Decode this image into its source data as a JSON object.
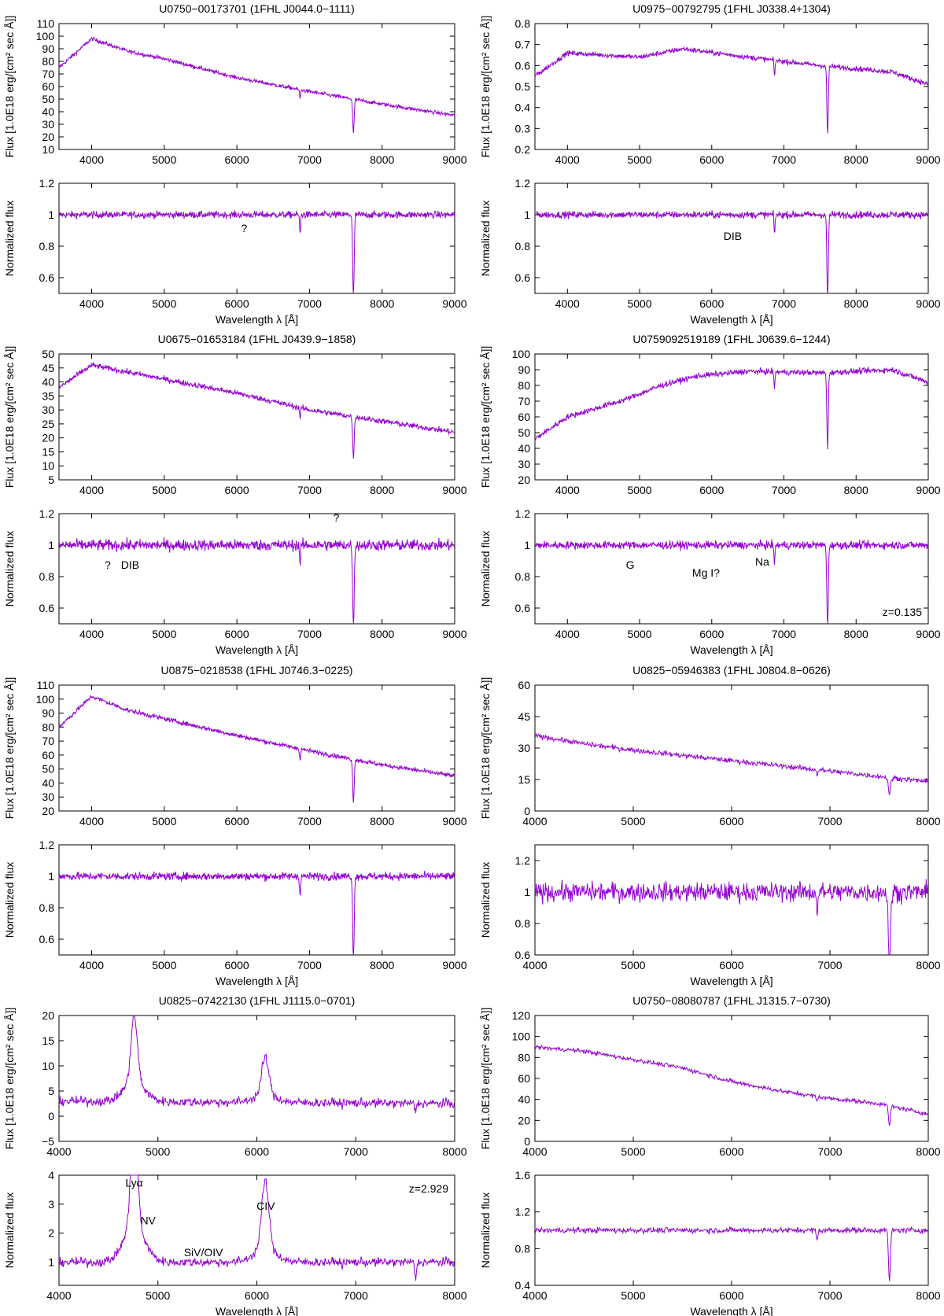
{
  "figure": {
    "spectrum_color": "#9400d3"
  },
  "chart_data": [
    {
      "type": "line",
      "title": "U0750−00173701 (1FHL J0044.0−1111)",
      "flux": {
        "ylabel": "Flux [1.0E18 erg/[cm² sec Å]]",
        "ylim": [
          10,
          110
        ],
        "yticks": [
          10,
          20,
          30,
          40,
          50,
          60,
          70,
          80,
          90,
          100,
          110
        ],
        "ytick_labels": [
          "10",
          "20",
          "30",
          "40",
          "50",
          "60",
          "70",
          "80",
          "90",
          "100",
          "110"
        ],
        "shape": [
          [
            3550,
            75
          ],
          [
            4000,
            98
          ],
          [
            4500,
            88
          ],
          [
            5000,
            82
          ],
          [
            6000,
            67
          ],
          [
            7000,
            56
          ],
          [
            8000,
            46
          ],
          [
            9000,
            37
          ]
        ],
        "noise": 1.5
      },
      "norm": {
        "ylabel": "Normalized flux",
        "ylim": [
          0.5,
          1.2
        ],
        "yticks": [
          0.6,
          0.8,
          1,
          1.2
        ],
        "ytick_labels": [
          "0.6",
          "0.8",
          "1",
          "1.2"
        ],
        "noise": 0.022
      },
      "xlim": [
        3550,
        9000
      ],
      "xticks": [
        4000,
        5000,
        6000,
        7000,
        8000,
        9000
      ],
      "xtick_labels": [
        "4000",
        "5000",
        "6000",
        "7000",
        "8000",
        "9000"
      ],
      "xlabel": "Wavelength λ [Å]",
      "annotations": [
        {
          "text": "?",
          "x": 6100,
          "y": 0.89
        }
      ],
      "z_label": ""
    },
    {
      "type": "line",
      "title": "U0975−00792795 (1FHL J0338.4+1304)",
      "flux": {
        "ylabel": "Flux [1.0E18 erg/[cm² sec Å]]",
        "ylim": [
          0.2,
          0.8
        ],
        "yticks": [
          0.2,
          0.3,
          0.4,
          0.5,
          0.6,
          0.7,
          0.8
        ],
        "ytick_labels": [
          "0.2",
          "0.3",
          "0.4",
          "0.5",
          "0.6",
          "0.7",
          "0.8"
        ],
        "shape": [
          [
            3550,
            0.55
          ],
          [
            4000,
            0.66
          ],
          [
            5000,
            0.64
          ],
          [
            5600,
            0.68
          ],
          [
            6500,
            0.64
          ],
          [
            7500,
            0.6
          ],
          [
            8500,
            0.57
          ],
          [
            9000,
            0.51
          ]
        ],
        "noise": 0.012
      },
      "norm": {
        "ylabel": "Normalized flux",
        "ylim": [
          0.5,
          1.2
        ],
        "yticks": [
          0.6,
          0.8,
          1,
          1.2
        ],
        "ytick_labels": [
          "0.6",
          "0.8",
          "1",
          "1.2"
        ],
        "noise": 0.022
      },
      "xlim": [
        3550,
        9000
      ],
      "xticks": [
        4000,
        5000,
        6000,
        7000,
        8000,
        9000
      ],
      "xtick_labels": [
        "4000",
        "5000",
        "6000",
        "7000",
        "8000",
        "9000"
      ],
      "xlabel": "Wavelength λ [Å]",
      "annotations": [
        {
          "text": "DIB",
          "x": 6290,
          "y": 0.84
        }
      ],
      "z_label": ""
    },
    {
      "type": "line",
      "title": "U0675−01653184 (1FHL J0439.9−1858)",
      "flux": {
        "ylabel": "Flux [1.0E18 erg/[cm² sec Å]]",
        "ylim": [
          5,
          50
        ],
        "yticks": [
          5,
          10,
          15,
          20,
          25,
          30,
          35,
          40,
          45,
          50
        ],
        "ytick_labels": [
          "5",
          "10",
          "15",
          "20",
          "25",
          "30",
          "35",
          "40",
          "45",
          "50"
        ],
        "shape": [
          [
            3550,
            38
          ],
          [
            4000,
            46
          ],
          [
            5000,
            41
          ],
          [
            6000,
            36
          ],
          [
            7000,
            30
          ],
          [
            8000,
            26
          ],
          [
            9000,
            22
          ]
        ],
        "noise": 1.0
      },
      "norm": {
        "ylabel": "Normalized flux",
        "ylim": [
          0.5,
          1.2
        ],
        "yticks": [
          0.6,
          0.8,
          1,
          1.2
        ],
        "ytick_labels": [
          "0.6",
          "0.8",
          "1",
          "1.2"
        ],
        "noise": 0.035
      },
      "xlim": [
        3550,
        9000
      ],
      "xticks": [
        4000,
        5000,
        6000,
        7000,
        8000,
        9000
      ],
      "xtick_labels": [
        "4000",
        "5000",
        "6000",
        "7000",
        "8000",
        "9000"
      ],
      "xlabel": "Wavelength λ [Å]",
      "annotations": [
        {
          "text": "?",
          "x": 4220,
          "y": 0.85
        },
        {
          "text": "DIB",
          "x": 4530,
          "y": 0.85
        },
        {
          "text": "?",
          "x": 7370,
          "y": 1.15
        }
      ],
      "z_label": ""
    },
    {
      "type": "line",
      "title": "U0759092519189 (1FHL J0639.6−1244)",
      "flux": {
        "ylabel": "Flux [1.0E18 erg/[cm² sec Å]]",
        "ylim": [
          20,
          100
        ],
        "yticks": [
          20,
          30,
          40,
          50,
          60,
          70,
          80,
          90,
          100
        ],
        "ytick_labels": [
          "20",
          "30",
          "40",
          "50",
          "60",
          "70",
          "80",
          "90",
          "100"
        ],
        "shape": [
          [
            3550,
            46
          ],
          [
            4000,
            60
          ],
          [
            4800,
            71
          ],
          [
            5300,
            80
          ],
          [
            5800,
            86
          ],
          [
            6500,
            89
          ],
          [
            7500,
            88
          ],
          [
            8500,
            90
          ],
          [
            9000,
            82
          ]
        ],
        "noise": 1.8
      },
      "norm": {
        "ylabel": "Normalized flux",
        "ylim": [
          0.5,
          1.2
        ],
        "yticks": [
          0.6,
          0.8,
          1,
          1.2
        ],
        "ytick_labels": [
          "0.6",
          "0.8",
          "1",
          "1.2"
        ],
        "noise": 0.025
      },
      "xlim": [
        3550,
        9000
      ],
      "xticks": [
        4000,
        5000,
        6000,
        7000,
        8000,
        9000
      ],
      "xtick_labels": [
        "4000",
        "5000",
        "6000",
        "7000",
        "8000",
        "9000"
      ],
      "xlabel": "Wavelength λ [Å]",
      "annotations": [
        {
          "text": "G",
          "x": 4870,
          "y": 0.85
        },
        {
          "text": "Mg I?",
          "x": 5920,
          "y": 0.8
        },
        {
          "text": "Na",
          "x": 6700,
          "y": 0.87
        }
      ],
      "z_label": "z=0.135"
    },
    {
      "type": "line",
      "title": "U0875−0218538 (1FHL J0746.3−0225)",
      "flux": {
        "ylabel": "Flux [1.0E18 erg/[cm² sec Å]]",
        "ylim": [
          20,
          110
        ],
        "yticks": [
          20,
          30,
          40,
          50,
          60,
          70,
          80,
          90,
          100,
          110
        ],
        "ytick_labels": [
          "20",
          "30",
          "40",
          "50",
          "60",
          "70",
          "80",
          "90",
          "100",
          "110"
        ],
        "shape": [
          [
            3550,
            80
          ],
          [
            4000,
            102
          ],
          [
            4500,
            92
          ],
          [
            5000,
            86
          ],
          [
            6000,
            74
          ],
          [
            7000,
            63
          ],
          [
            8000,
            53
          ],
          [
            9000,
            45
          ]
        ],
        "noise": 1.6
      },
      "norm": {
        "ylabel": "Normalized flux",
        "ylim": [
          0.5,
          1.2
        ],
        "yticks": [
          0.6,
          0.8,
          1,
          1.2
        ],
        "ytick_labels": [
          "0.6",
          "0.8",
          "1",
          "1.2"
        ],
        "noise": 0.025
      },
      "xlim": [
        3550,
        9000
      ],
      "xticks": [
        4000,
        5000,
        6000,
        7000,
        8000,
        9000
      ],
      "xtick_labels": [
        "4000",
        "5000",
        "6000",
        "7000",
        "8000",
        "9000"
      ],
      "xlabel": "Wavelength λ [Å]",
      "annotations": [],
      "z_label": ""
    },
    {
      "type": "line",
      "title": "U0825−05946383 (1FHL J0804.8−0626)",
      "flux": {
        "ylabel": "Flux [1.0E18 erg/[cm² sec Å]]",
        "ylim": [
          0,
          60
        ],
        "yticks": [
          0,
          15,
          30,
          45,
          60
        ],
        "ytick_labels": [
          "0",
          "15",
          "30",
          "45",
          "60"
        ],
        "shape": [
          [
            4000,
            36
          ],
          [
            4500,
            32
          ],
          [
            5000,
            29
          ],
          [
            6000,
            24
          ],
          [
            7000,
            19
          ],
          [
            8000,
            14
          ]
        ],
        "noise": 1.2
      },
      "norm": {
        "ylabel": "Normalized flux",
        "ylim": [
          0.6,
          1.3
        ],
        "yticks": [
          0.6,
          0.8,
          1,
          1.2
        ],
        "ytick_labels": [
          "0.6",
          "0.8",
          "1",
          "1.2"
        ],
        "noise": 0.06
      },
      "xlim": [
        4000,
        8000
      ],
      "xticks": [
        4000,
        5000,
        6000,
        7000,
        8000
      ],
      "xtick_labels": [
        "4000",
        "5000",
        "6000",
        "7000",
        "8000"
      ],
      "xlabel": "Wavelength λ [Å]",
      "annotations": [],
      "z_label": ""
    },
    {
      "type": "line",
      "title": "U0825−07422130 (1FHL J1115.0−0701)",
      "flux": {
        "ylabel": "Flux [1.0E18 erg/[cm² sec Å]]",
        "ylim": [
          -5,
          20
        ],
        "yticks": [
          -5,
          0,
          5,
          10,
          15,
          20
        ],
        "ytick_labels": [
          "−5",
          "0",
          "5",
          "10",
          "15",
          "20"
        ],
        "shape": [
          [
            4000,
            3
          ],
          [
            8000,
            2.5
          ]
        ],
        "noise": 0.9
      },
      "norm": {
        "ylabel": "Normalized flux",
        "ylim": [
          0.2,
          4
        ],
        "yticks": [
          1,
          2,
          3,
          4
        ],
        "ytick_labels": [
          "1",
          "2",
          "3",
          "4"
        ],
        "noise": 0.15
      },
      "xlim": [
        4000,
        8000
      ],
      "xticks": [
        4000,
        5000,
        6000,
        7000,
        8000
      ],
      "xtick_labels": [
        "4000",
        "5000",
        "6000",
        "7000",
        "8000"
      ],
      "xlabel": "Wavelength λ [Å]",
      "annotations": [
        {
          "text": "Lyα",
          "x": 4760,
          "y": 3.6
        },
        {
          "text": "NV",
          "x": 4900,
          "y": 2.3
        },
        {
          "text": "SiV/OIV",
          "x": 5460,
          "y": 1.2
        },
        {
          "text": "CIV",
          "x": 6090,
          "y": 2.8
        }
      ],
      "z_label": "z=2.929"
    },
    {
      "type": "line",
      "title": "U0750−08080787 (1FHL J1315.7−0730)",
      "flux": {
        "ylabel": "Flux [1.0E18 erg/[cm² sec Å]]",
        "ylim": [
          0,
          120
        ],
        "yticks": [
          0,
          20,
          40,
          60,
          80,
          100,
          120
        ],
        "ytick_labels": [
          "0",
          "20",
          "40",
          "60",
          "80",
          "100",
          "120"
        ],
        "shape": [
          [
            4000,
            90
          ],
          [
            4500,
            86
          ],
          [
            5000,
            78
          ],
          [
            5500,
            70
          ],
          [
            6000,
            57
          ],
          [
            6500,
            48
          ],
          [
            7000,
            41
          ],
          [
            7500,
            36
          ],
          [
            8000,
            26
          ]
        ],
        "noise": 2.0
      },
      "norm": {
        "ylabel": "Normalized flux",
        "ylim": [
          0.4,
          1.6
        ],
        "yticks": [
          0.4,
          0.8,
          1.2,
          1.6
        ],
        "ytick_labels": [
          "0.4",
          "0.8",
          "1.2",
          "1.6"
        ],
        "noise": 0.03
      },
      "xlim": [
        4000,
        8000
      ],
      "xticks": [
        4000,
        5000,
        6000,
        7000,
        8000
      ],
      "xtick_labels": [
        "4000",
        "5000",
        "6000",
        "7000",
        "8000"
      ],
      "xlabel": "Wavelength λ [Å]",
      "annotations": [],
      "z_label": ""
    }
  ]
}
